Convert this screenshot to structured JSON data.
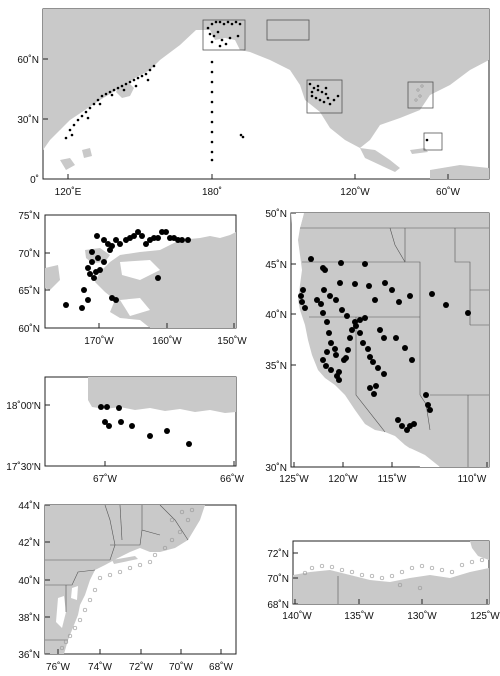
{
  "colors": {
    "land": "#c9c9c9",
    "ocean": "#ffffff",
    "point": "#000000",
    "open_marker": "#9a9a9a",
    "border": "#555555"
  },
  "panels": {
    "overview": {
      "lat_labels": [
        "60˚N",
        "30˚N",
        "0˚"
      ],
      "lon_labels": [
        "120˚E",
        "180˚",
        "120˚W",
        "60˚W"
      ]
    },
    "alaska_north": {
      "lat_labels": [
        "75˚N",
        "70˚N",
        "65˚N",
        "60˚N"
      ],
      "lon_labels": [
        "170˚W",
        "160˚W",
        "150˚W"
      ]
    },
    "california": {
      "lat_labels": [
        "50˚N",
        "45˚N",
        "40˚N",
        "35˚N",
        "30˚N"
      ],
      "lon_labels": [
        "125˚W",
        "120˚W",
        "115˚W",
        "110˚W"
      ]
    },
    "puerto_rico": {
      "lat_labels": [
        "18˚00'N",
        "17˚30'N"
      ],
      "lon_labels": [
        "67˚W",
        "66˚W"
      ]
    },
    "northeast_us": {
      "lat_labels": [
        "44˚N",
        "42˚N",
        "40˚N",
        "38˚N",
        "36˚N"
      ],
      "lon_labels": [
        "76˚W",
        "74˚W",
        "72˚W",
        "70˚W",
        "68˚W"
      ]
    },
    "beaufort": {
      "lat_labels": [
        "72˚N",
        "70˚N",
        "68˚N"
      ],
      "lon_labels": [
        "140˚W",
        "135˚W",
        "130˚W",
        "125˚W"
      ]
    }
  }
}
